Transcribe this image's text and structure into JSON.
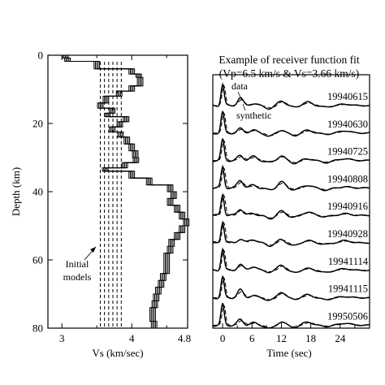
{
  "chart_data": [
    {
      "type": "line",
      "panel": "velocity-model",
      "xlabel": "Vs (km/sec)",
      "ylabel": "Depth (km)",
      "xlim": [
        2.8,
        4.8
      ],
      "ylim": [
        80,
        0
      ],
      "x_ticks": [
        3,
        4
      ],
      "x_minor_ticks": [
        3.5,
        4.5
      ],
      "y_ticks": [
        0,
        20,
        40,
        60,
        80
      ],
      "y_tick_labels": [
        "0",
        "20",
        "40",
        "60",
        "80"
      ],
      "x_tick_labels": {
        "3": "3",
        "4": "4",
        "4.8": "4.8"
      },
      "initial_models_label": "Initial\nmodels",
      "initial_models_label_lines": [
        "Initial",
        "models"
      ],
      "initial_models_vs": [
        3.55,
        3.61,
        3.67,
        3.73,
        3.79,
        3.85
      ],
      "initial_models_depth_range": [
        0,
        80
      ],
      "inverted_model": {
        "depth": [
          0,
          0.8,
          0.8,
          1.8,
          1.8,
          4,
          4,
          5.5,
          5.5,
          6.5,
          6.5,
          9,
          9,
          10.5,
          10.5,
          12,
          12,
          14,
          14,
          15.5,
          15.5,
          17,
          17,
          18,
          18,
          19.5,
          19.5,
          21,
          21,
          22.5,
          22.5,
          24,
          24,
          26,
          26,
          28,
          28,
          30,
          30,
          31.5,
          31.5,
          33,
          33,
          34,
          34,
          36,
          36,
          38,
          38,
          40,
          40,
          42,
          42,
          44,
          44,
          46,
          46,
          48,
          48,
          50,
          50,
          52,
          52,
          54,
          54,
          56,
          56,
          58,
          58,
          64,
          64,
          66,
          66,
          68,
          68,
          70,
          70,
          72,
          72,
          74,
          74,
          76,
          76,
          78,
          78,
          80
        ],
        "vs": [
          3.05,
          3.05,
          3.08,
          3.08,
          3.5,
          3.5,
          4.0,
          4.0,
          4.1,
          4.1,
          4.12,
          4.12,
          4.0,
          4.0,
          3.82,
          3.82,
          3.63,
          3.63,
          3.55,
          3.55,
          3.72,
          3.72,
          3.65,
          3.65,
          3.92,
          3.92,
          3.83,
          3.83,
          3.72,
          3.72,
          3.84,
          3.84,
          3.93,
          3.93,
          4.0,
          4.0,
          4.05,
          4.05,
          4.06,
          4.06,
          3.9,
          3.9,
          3.62,
          3.62,
          4.0,
          4.0,
          4.25,
          4.25,
          4.55,
          4.55,
          4.6,
          4.6,
          4.55,
          4.55,
          4.65,
          4.65,
          4.72,
          4.72,
          4.78,
          4.78,
          4.72,
          4.72,
          4.65,
          4.65,
          4.57,
          4.57,
          4.55,
          4.55,
          4.5,
          4.5,
          4.45,
          4.45,
          4.42,
          4.42,
          4.38,
          4.38,
          4.35,
          4.35,
          4.33,
          4.33,
          4.3,
          4.3,
          4.3,
          4.3,
          4.32,
          4.32
        ],
        "ensemble_offsets": [
          -0.04,
          -0.02,
          0,
          0.02,
          0.04
        ]
      }
    },
    {
      "type": "line",
      "panel": "receiver-functions",
      "title_lines": [
        "Example of receiver function fit",
        "(Vp=6.5 km/s & Vs=3.66 km/s)"
      ],
      "xlabel": "Time (sec)",
      "xlim": [
        -2,
        30
      ],
      "x_ticks": [
        0,
        6,
        12,
        18,
        24
      ],
      "x_tick_labels": [
        "0",
        "6",
        "12",
        "18",
        "24"
      ],
      "x_minor_ticks": [
        3,
        9,
        15,
        21,
        27
      ],
      "data_label": "data",
      "synthetic_label": "synthetic",
      "events": [
        "19940615",
        "19940630",
        "19940725",
        "19940808",
        "19940916",
        "19940928",
        "19941114",
        "19941115",
        "19950506"
      ],
      "arrivals": [
        {
          "t": 0.0,
          "a": 1.0,
          "w": 0.45
        },
        {
          "t": 3.6,
          "a": 0.28,
          "w": 0.8
        },
        {
          "t": 6.2,
          "a": 0.14,
          "w": 1.0
        },
        {
          "t": 9.6,
          "a": -0.12,
          "w": 1.1
        },
        {
          "t": 12.0,
          "a": 0.22,
          "w": 1.0
        },
        {
          "t": 14.6,
          "a": -0.1,
          "w": 1.2
        },
        {
          "t": 17.4,
          "a": 0.12,
          "w": 1.3
        },
        {
          "t": 21.0,
          "a": -0.08,
          "w": 1.4
        },
        {
          "t": 25.0,
          "a": 0.08,
          "w": 1.5
        }
      ]
    }
  ]
}
